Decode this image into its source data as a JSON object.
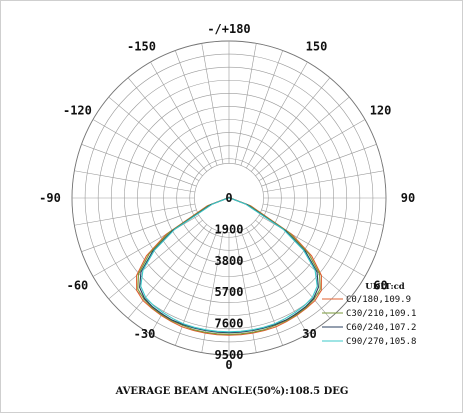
{
  "chart_data": {
    "type": "polar",
    "title": "",
    "angle_labels": [
      {
        "text": "-/+180",
        "angle": 180
      },
      {
        "text": "150",
        "angle": 150
      },
      {
        "text": "-150",
        "angle": -150
      },
      {
        "text": "120",
        "angle": 120
      },
      {
        "text": "-120",
        "angle": -120
      },
      {
        "text": "90",
        "angle": 90
      },
      {
        "text": "-90",
        "angle": -90
      },
      {
        "text": "60",
        "angle": 60
      },
      {
        "text": "-60",
        "angle": -60
      },
      {
        "text": "30",
        "angle": 30
      },
      {
        "text": "-30",
        "angle": -30
      },
      {
        "text": "0",
        "angle": 0
      }
    ],
    "radial_max": 9500,
    "radial_ticks": [
      {
        "value": 0,
        "text": "0"
      },
      {
        "value": 1900,
        "text": "1900"
      },
      {
        "value": 3800,
        "text": "3800"
      },
      {
        "value": 5700,
        "text": "5700"
      },
      {
        "value": 7600,
        "text": "7600"
      },
      {
        "value": 9500,
        "text": "9500"
      }
    ],
    "unit": "UNIT:cd",
    "series": [
      {
        "name": "C0/180,109.9",
        "color": "#e06030",
        "points": [
          [
            -90,
            0
          ],
          [
            -80,
            150
          ],
          [
            -70,
            1400
          ],
          [
            -60,
            4400
          ],
          [
            -55,
            6100
          ],
          [
            -50,
            7300
          ],
          [
            -45,
            7900
          ],
          [
            -40,
            8100
          ],
          [
            -35,
            8150
          ],
          [
            -30,
            8200
          ],
          [
            -25,
            8250
          ],
          [
            -20,
            8300
          ],
          [
            -15,
            8300
          ],
          [
            -10,
            8300
          ],
          [
            -5,
            8300
          ],
          [
            0,
            8300
          ],
          [
            5,
            8300
          ],
          [
            10,
            8300
          ],
          [
            15,
            8300
          ],
          [
            20,
            8300
          ],
          [
            25,
            8250
          ],
          [
            30,
            8200
          ],
          [
            35,
            8150
          ],
          [
            40,
            8100
          ],
          [
            45,
            7900
          ],
          [
            50,
            7300
          ],
          [
            55,
            6100
          ],
          [
            60,
            4400
          ],
          [
            70,
            1400
          ],
          [
            80,
            150
          ],
          [
            90,
            0
          ]
        ]
      },
      {
        "name": "C30/210,109.1",
        "color": "#7a9a3a",
        "points": [
          [
            -90,
            0
          ],
          [
            -80,
            130
          ],
          [
            -70,
            1300
          ],
          [
            -60,
            4200
          ],
          [
            -55,
            5900
          ],
          [
            -50,
            7150
          ],
          [
            -45,
            7800
          ],
          [
            -40,
            8000
          ],
          [
            -35,
            8100
          ],
          [
            -30,
            8150
          ],
          [
            -25,
            8200
          ],
          [
            -20,
            8200
          ],
          [
            -15,
            8250
          ],
          [
            -10,
            8250
          ],
          [
            -5,
            8250
          ],
          [
            0,
            8250
          ],
          [
            5,
            8250
          ],
          [
            10,
            8250
          ],
          [
            15,
            8250
          ],
          [
            20,
            8200
          ],
          [
            25,
            8200
          ],
          [
            30,
            8150
          ],
          [
            35,
            8100
          ],
          [
            40,
            8000
          ],
          [
            45,
            7800
          ],
          [
            50,
            7150
          ],
          [
            55,
            5900
          ],
          [
            60,
            4200
          ],
          [
            70,
            1300
          ],
          [
            80,
            130
          ],
          [
            90,
            0
          ]
        ]
      },
      {
        "name": "C60/240,107.2",
        "color": "#2a3f5f",
        "points": [
          [
            -90,
            0
          ],
          [
            -80,
            110
          ],
          [
            -70,
            1150
          ],
          [
            -60,
            3950
          ],
          [
            -55,
            5650
          ],
          [
            -50,
            6950
          ],
          [
            -45,
            7650
          ],
          [
            -40,
            7950
          ],
          [
            -35,
            8050
          ],
          [
            -30,
            8100
          ],
          [
            -25,
            8150
          ],
          [
            -20,
            8150
          ],
          [
            -15,
            8150
          ],
          [
            -10,
            8150
          ],
          [
            -5,
            8150
          ],
          [
            0,
            8150
          ],
          [
            5,
            8150
          ],
          [
            10,
            8150
          ],
          [
            15,
            8150
          ],
          [
            20,
            8150
          ],
          [
            25,
            8150
          ],
          [
            30,
            8100
          ],
          [
            35,
            8050
          ],
          [
            40,
            7950
          ],
          [
            45,
            7650
          ],
          [
            50,
            6950
          ],
          [
            55,
            5650
          ],
          [
            60,
            3950
          ],
          [
            70,
            1150
          ],
          [
            80,
            110
          ],
          [
            90,
            0
          ]
        ]
      },
      {
        "name": "C90/270,105.8",
        "color": "#3cc8c8",
        "points": [
          [
            -90,
            0
          ],
          [
            -80,
            100
          ],
          [
            -70,
            1050
          ],
          [
            -60,
            3800
          ],
          [
            -55,
            5500
          ],
          [
            -50,
            6800
          ],
          [
            -45,
            7550
          ],
          [
            -40,
            7850
          ],
          [
            -35,
            7950
          ],
          [
            -30,
            8000
          ],
          [
            -25,
            8050
          ],
          [
            -20,
            8100
          ],
          [
            -15,
            8100
          ],
          [
            -10,
            8100
          ],
          [
            -5,
            8100
          ],
          [
            0,
            8100
          ],
          [
            5,
            8100
          ],
          [
            10,
            8100
          ],
          [
            15,
            8100
          ],
          [
            20,
            8100
          ],
          [
            25,
            8050
          ],
          [
            30,
            8000
          ],
          [
            35,
            7950
          ],
          [
            40,
            7850
          ],
          [
            45,
            7550
          ],
          [
            50,
            6800
          ],
          [
            55,
            5500
          ],
          [
            60,
            3800
          ],
          [
            70,
            1050
          ],
          [
            80,
            100
          ],
          [
            90,
            0
          ]
        ]
      }
    ],
    "footer": "AVERAGE BEAM ANGLE(50%):108.5 DEG",
    "grid": true
  }
}
